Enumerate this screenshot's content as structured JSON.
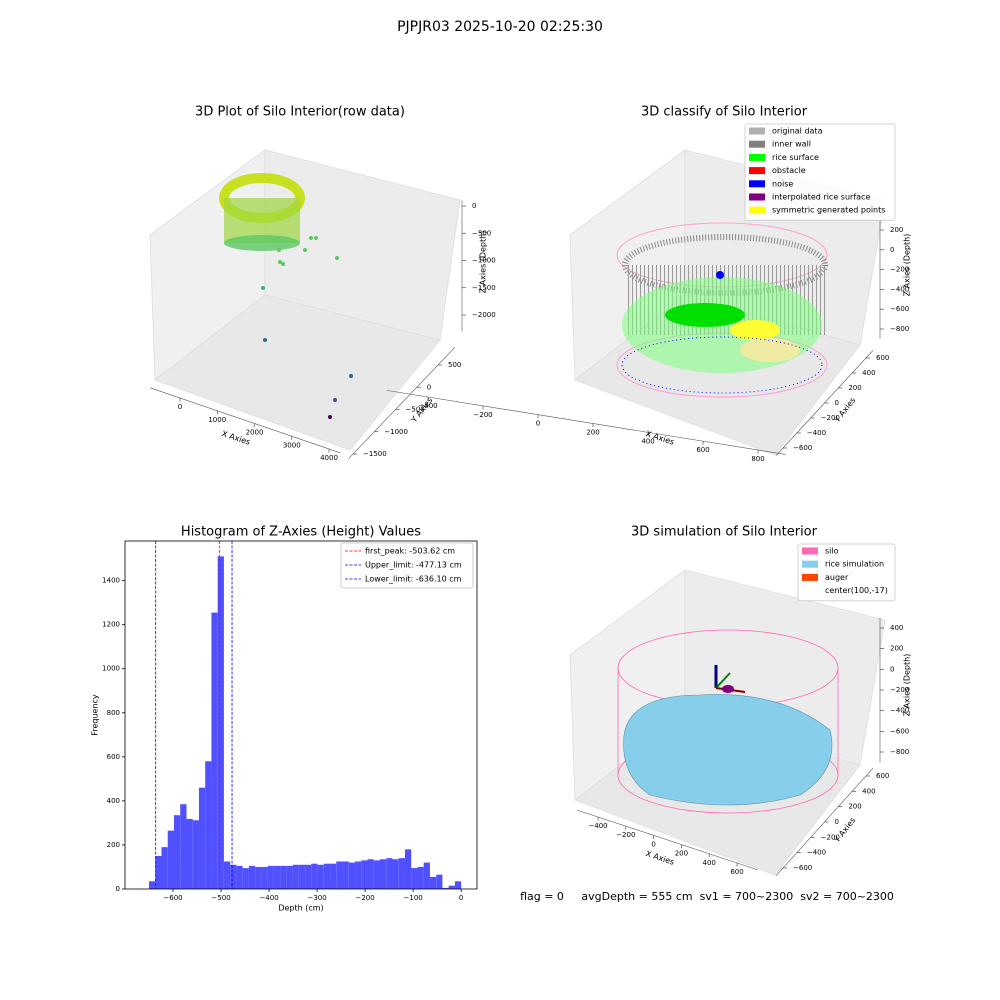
{
  "title": "PJPJR03 2025-10-20 02:25:30",
  "chart_data": [
    {
      "type": "scatter3d",
      "title": "3D Plot of Silo Interior(row data)",
      "xlabel": "X Axies",
      "ylabel": "Y Axies",
      "zlabel": "Z Axies (Depth)",
      "xlim": [
        -800,
        4300
      ],
      "xticks": [
        0,
        1000,
        2000,
        3000,
        4000
      ],
      "ylim": [
        -1600,
        900
      ],
      "yticks": [
        {
          "value": -1500,
          "label": "−1500"
        },
        {
          "value": -1000,
          "label": "−1000"
        },
        {
          "value": -500,
          "label": "−500"
        },
        0,
        500
      ],
      "zlim": [
        -2300,
        100
      ],
      "zticks": [
        {
          "value": -2000,
          "label": "−2000"
        },
        {
          "value": -1500,
          "label": "−1500"
        },
        {
          "value": -1000,
          "label": "−1000"
        },
        {
          "value": -500,
          "label": "−500"
        },
        0
      ]
    },
    {
      "type": "scatter3d",
      "title": "3D classify of Silo Interior",
      "xlabel": "X Axies",
      "ylabel": "Y Axies",
      "zlabel": "Z Axies (Depth)",
      "xlim": [
        -550,
        900
      ],
      "xticks": [
        {
          "value": -400,
          "label": "−400"
        },
        {
          "value": -200,
          "label": "−200"
        },
        0,
        200,
        400,
        600,
        800
      ],
      "ylim": [
        -700,
        700
      ],
      "yticks": [
        {
          "value": -600,
          "label": "−600"
        },
        {
          "value": -400,
          "label": "−400"
        },
        {
          "value": -200,
          "label": "−200"
        },
        0,
        200,
        400,
        600
      ],
      "zlim": [
        -900,
        300
      ],
      "zticks": [
        {
          "value": -800,
          "label": "−800"
        },
        {
          "value": -600,
          "label": "−600"
        },
        {
          "value": -400,
          "label": "−400"
        },
        {
          "value": -200,
          "label": "−200"
        },
        0,
        200
      ],
      "legend": [
        {
          "name": "original data",
          "color": "#b0b0b0"
        },
        {
          "name": "inner wall",
          "color": "#808080"
        },
        {
          "name": "rice surface",
          "color": "#00ff00"
        },
        {
          "name": "obstacle",
          "color": "#ff0000"
        },
        {
          "name": "noise",
          "color": "#0000ff"
        },
        {
          "name": "interpolated rice surface",
          "color": "#800080"
        },
        {
          "name": "symmetric generated points",
          "color": "#ffff00"
        }
      ]
    },
    {
      "type": "histogram",
      "title": "Histogram of Z-Axies (Height) Values",
      "xlabel": "Depth (cm)",
      "ylabel": "Frequency",
      "color": "#5050ff",
      "bins": [
        -650,
        -637,
        -624,
        -611,
        -598,
        -585,
        -572,
        -559,
        -546,
        -533,
        -520,
        -507,
        -494,
        -481,
        -468,
        -455,
        -442,
        -429,
        -416,
        -403,
        -390,
        -377,
        -364,
        -351,
        -338,
        -325,
        -312,
        -299,
        -286,
        -273,
        -260,
        -247,
        -234,
        -221,
        -208,
        -195,
        -182,
        -169,
        -156,
        -143,
        -130,
        -117,
        -104,
        -91,
        -78,
        -65,
        -52,
        -39,
        -26,
        -13,
        0
      ],
      "values": [
        35,
        150,
        190,
        265,
        335,
        385,
        318,
        312,
        460,
        580,
        1255,
        1510,
        125,
        110,
        105,
        95,
        105,
        100,
        100,
        105,
        105,
        105,
        105,
        110,
        110,
        110,
        115,
        110,
        115,
        115,
        125,
        125,
        120,
        125,
        130,
        135,
        130,
        135,
        140,
        135,
        140,
        180,
        95,
        100,
        120,
        55,
        65,
        5,
        15,
        35
      ],
      "xlim": [
        -700,
        33
      ],
      "xticks": [
        {
          "value": -600,
          "label": "−600"
        },
        {
          "value": -500,
          "label": "−500"
        },
        {
          "value": -400,
          "label": "−400"
        },
        {
          "value": -300,
          "label": "−300"
        },
        {
          "value": -200,
          "label": "−200"
        },
        {
          "value": -100,
          "label": "−100"
        },
        0
      ],
      "ylim": [
        0,
        1580
      ],
      "yticks": [
        0,
        200,
        400,
        600,
        800,
        1000,
        1200,
        1400
      ],
      "vlines": [
        {
          "value": -503.62,
          "label": "first_peak: -503.62 cm",
          "color": "#ff0000"
        },
        {
          "value": -477.13,
          "label": "Upper_limit: -477.13 cm",
          "color": "#0000ff"
        },
        {
          "value": -636.1,
          "label": "Lower_limit: -636.10 cm",
          "color": "#0000ff"
        }
      ]
    },
    {
      "type": "surface3d",
      "title": "3D simulation of Silo Interior",
      "xlabel": "X Axies",
      "ylabel": "Y Axies",
      "zlabel": "Z Axies (Depth)",
      "xlim": [
        -550,
        750
      ],
      "xticks": [
        {
          "value": -400,
          "label": "−400"
        },
        {
          "value": -200,
          "label": "−200"
        },
        0,
        200,
        400,
        600
      ],
      "ylim": [
        -700,
        700
      ],
      "yticks": [
        {
          "value": -600,
          "label": "−600"
        },
        {
          "value": -400,
          "label": "−400"
        },
        {
          "value": -200,
          "label": "−200"
        },
        0,
        200,
        400,
        600
      ],
      "zlim": [
        -900,
        500
      ],
      "zticks": [
        {
          "value": -800,
          "label": "−800"
        },
        {
          "value": -600,
          "label": "−600"
        },
        {
          "value": -400,
          "label": "−400"
        },
        {
          "value": -200,
          "label": "−200"
        },
        0,
        200,
        400
      ],
      "legend": [
        {
          "name": "silo",
          "color": "#ff69b4"
        },
        {
          "name": "rice simulation",
          "color": "#87ceeb"
        },
        {
          "name": "auger",
          "color": "#ff4500"
        },
        {
          "name": "center(100,-17)",
          "color": "#ffffff"
        }
      ],
      "annotation": "flag = 0     avgDepth = 555 cm  sv1 = 700~2300  sv2 = 700~2300"
    }
  ]
}
